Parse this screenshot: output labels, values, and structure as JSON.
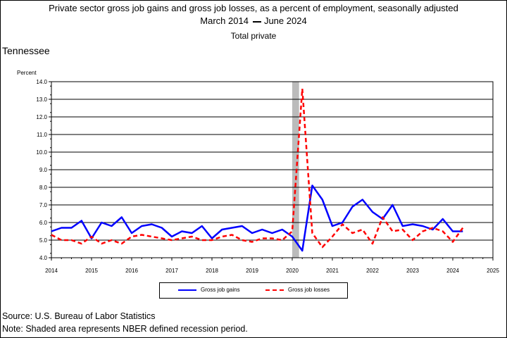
{
  "header": {
    "title_line1": "Private sector gross job gains and gross job losses, as a percent of employment, seasonally adjusted",
    "range_start": "March 2014",
    "range_end": "June 2024",
    "subtitle": "Total private"
  },
  "region_label": "Tennessee",
  "footer": {
    "source": "Source: U.S. Bureau of Labor Statistics",
    "note": "Note: Shaded area represents NBER defined recession period."
  },
  "colors": {
    "gains": "#0000ff",
    "losses": "#ff0000",
    "recession": "#bbbbbb",
    "grid": "#000000"
  },
  "chart_data": {
    "type": "line",
    "title": "Private sector gross job gains and gross job losses, as a percent of employment, seasonally adjusted",
    "ylabel": "Percent",
    "xlabel": "",
    "xlim": [
      2014,
      2025
    ],
    "ylim": [
      4.0,
      14.0
    ],
    "y_ticks": [
      "4.0",
      "5.0",
      "6.0",
      "7.0",
      "8.0",
      "9.0",
      "10.0",
      "11.0",
      "12.0",
      "13.0",
      "14.0"
    ],
    "x_ticks": [
      "2014",
      "2015",
      "2016",
      "2017",
      "2018",
      "2019",
      "2020",
      "2021",
      "2022",
      "2023",
      "2024",
      "2025"
    ],
    "grid": "horizontal",
    "legend_position": "bottom",
    "recession": {
      "start": 2020.0,
      "end": 2020.17
    },
    "x": [
      2014.0,
      2014.25,
      2014.5,
      2014.75,
      2015.0,
      2015.25,
      2015.5,
      2015.75,
      2016.0,
      2016.25,
      2016.5,
      2016.75,
      2017.0,
      2017.25,
      2017.5,
      2017.75,
      2018.0,
      2018.25,
      2018.5,
      2018.75,
      2019.0,
      2019.25,
      2019.5,
      2019.75,
      2020.0,
      2020.25,
      2020.5,
      2020.75,
      2021.0,
      2021.25,
      2021.5,
      2021.75,
      2022.0,
      2022.25,
      2022.5,
      2022.75,
      2023.0,
      2023.25,
      2023.5,
      2023.75,
      2024.0,
      2024.25
    ],
    "series": [
      {
        "name": "Gross job gains",
        "values": [
          5.5,
          5.7,
          5.7,
          6.1,
          5.1,
          6.0,
          5.8,
          6.3,
          5.4,
          5.8,
          5.9,
          5.7,
          5.2,
          5.5,
          5.4,
          5.8,
          5.1,
          5.6,
          5.7,
          5.8,
          5.4,
          5.6,
          5.4,
          5.6,
          5.2,
          4.4,
          8.1,
          7.3,
          5.8,
          6.0,
          6.9,
          7.3,
          6.6,
          6.2,
          7.0,
          5.8,
          5.9,
          5.8,
          5.6,
          6.2,
          5.5,
          5.5
        ]
      },
      {
        "name": "Gross job losses",
        "values": [
          5.3,
          5.0,
          5.0,
          4.8,
          5.2,
          4.8,
          5.0,
          4.8,
          5.2,
          5.3,
          5.2,
          5.1,
          5.0,
          5.1,
          5.2,
          5.0,
          5.0,
          5.2,
          5.3,
          5.0,
          4.9,
          5.1,
          5.1,
          5.0,
          5.5,
          13.6,
          5.4,
          4.6,
          5.2,
          5.9,
          5.4,
          5.6,
          4.8,
          6.3,
          5.5,
          5.6,
          5.0,
          5.5,
          5.7,
          5.5,
          4.9,
          5.7
        ]
      }
    ]
  }
}
